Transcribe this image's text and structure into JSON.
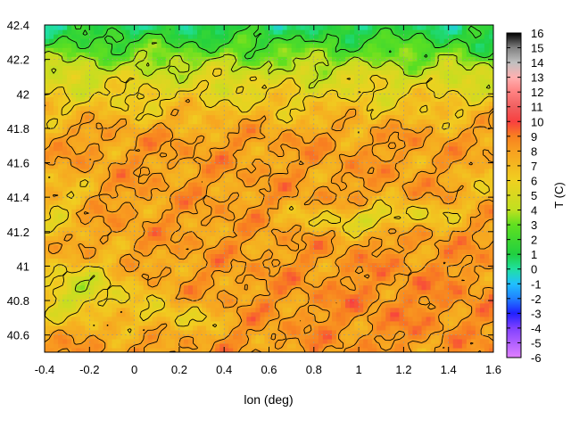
{
  "chart_data": {
    "type": "heatmap",
    "title": "",
    "xlabel": "lon (deg)",
    "ylabel": "",
    "colorbar_label": "T (C)",
    "xlim": [
      -0.4,
      1.6
    ],
    "ylim": [
      40.5,
      42.4
    ],
    "x_ticks": [
      -0.4,
      -0.2,
      0,
      0.2,
      0.4,
      0.6,
      0.8,
      1,
      1.2,
      1.4,
      1.6
    ],
    "x_tick_labels": [
      "-0.4",
      "-0.2",
      "0",
      "0.2",
      "0.4",
      "0.6",
      "0.8",
      "1",
      "1.2",
      "1.4",
      "1.6"
    ],
    "y_ticks": [
      40.6,
      40.8,
      41,
      41.2,
      41.4,
      41.6,
      41.8,
      42,
      42.2,
      42.4
    ],
    "y_tick_labels": [
      "40.6",
      "40.8",
      "41",
      "41.2",
      "41.4",
      "41.6",
      "41.8",
      "42",
      "42.2",
      "42.4"
    ],
    "colorbar_range": [
      -6,
      16
    ],
    "colorbar_ticks": [
      -6,
      -5,
      -4,
      -3,
      -2,
      -1,
      0,
      1,
      2,
      3,
      4,
      5,
      6,
      7,
      8,
      9,
      10,
      11,
      12,
      13,
      14,
      15,
      16
    ],
    "colorbar_tick_labels": [
      "-6",
      "-5",
      "-4",
      "-3",
      "-2",
      "-1",
      "0",
      "1",
      "2",
      "3",
      "4",
      "5",
      "6",
      "7",
      "8",
      "9",
      "10",
      "11",
      "12",
      "13",
      "14",
      "15",
      "16"
    ],
    "colormap_stops": [
      {
        "t": -6,
        "color": "#e080ff"
      },
      {
        "t": -4,
        "color": "#8040ff"
      },
      {
        "t": -3,
        "color": "#2020ff"
      },
      {
        "t": -2,
        "color": "#2080ff"
      },
      {
        "t": -1,
        "color": "#20c0ff"
      },
      {
        "t": 0,
        "color": "#20e0a0"
      },
      {
        "t": 1,
        "color": "#20d040"
      },
      {
        "t": 3,
        "color": "#60e020"
      },
      {
        "t": 4,
        "color": "#c0e020"
      },
      {
        "t": 6,
        "color": "#f0d020"
      },
      {
        "t": 8,
        "color": "#f8a020"
      },
      {
        "t": 9,
        "color": "#f88020"
      },
      {
        "t": 10,
        "color": "#f84040"
      },
      {
        "t": 11,
        "color": "#f06060"
      },
      {
        "t": 12,
        "color": "#ff8080"
      },
      {
        "t": 13,
        "color": "#ffb0b0"
      },
      {
        "t": 14,
        "color": "#c0c0c0"
      },
      {
        "t": 15,
        "color": "#808080"
      },
      {
        "t": 16,
        "color": "#000000"
      }
    ],
    "grid": true,
    "contour_lines": true
  }
}
